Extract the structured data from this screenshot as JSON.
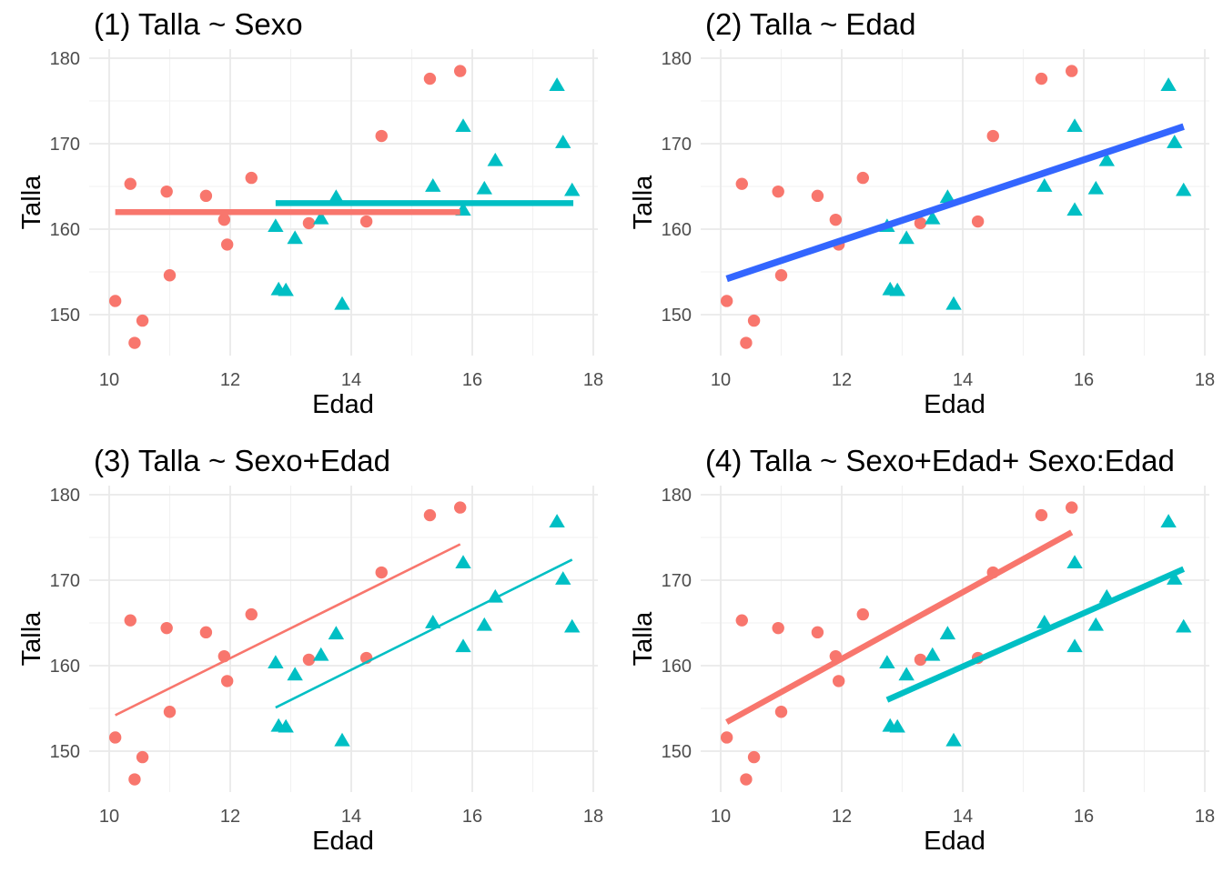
{
  "chart_data": {
    "type": "scatter",
    "shared": {
      "xlabel": "Edad",
      "ylabel": "Talla",
      "x_ticks": [
        10,
        12,
        14,
        16,
        18
      ],
      "x_minor": [
        11,
        13,
        15,
        17
      ],
      "y_ticks": [
        150,
        160,
        170,
        180
      ],
      "y_minor": [
        155,
        165,
        175
      ],
      "xlim": [
        9.67,
        18.07
      ],
      "ylim": [
        145.2,
        181.1
      ],
      "grid": "on",
      "legend": "none",
      "colors": {
        "red": "#F8766D",
        "teal": "#00BFC4",
        "blue": "#3366FF",
        "grid_major": "#E9E9E9",
        "grid_minor": "#F2F2F2",
        "tick_text": "#4d4d4d",
        "title_text": "#000000"
      },
      "groups": [
        {
          "name": "group-red-circles",
          "marker": "circle",
          "color": "#F8766D",
          "points": [
            [
              10.1,
              151.6
            ],
            [
              10.35,
              165.3
            ],
            [
              10.42,
              146.7
            ],
            [
              10.55,
              149.3
            ],
            [
              10.95,
              164.4
            ],
            [
              11.0,
              154.6
            ],
            [
              11.6,
              163.9
            ],
            [
              11.9,
              161.1
            ],
            [
              11.95,
              158.2
            ],
            [
              12.35,
              166.0
            ],
            [
              13.3,
              160.7
            ],
            [
              14.25,
              160.9
            ],
            [
              14.5,
              170.9
            ],
            [
              15.3,
              177.6
            ],
            [
              15.8,
              178.5
            ]
          ]
        },
        {
          "name": "group-teal-triangles",
          "marker": "triangle",
          "color": "#00BFC4",
          "points": [
            [
              12.75,
              160.4
            ],
            [
              12.8,
              153.0
            ],
            [
              12.92,
              152.9
            ],
            [
              13.07,
              159.0
            ],
            [
              13.5,
              161.3
            ],
            [
              13.75,
              163.8
            ],
            [
              13.85,
              151.3
            ],
            [
              15.35,
              165.1
            ],
            [
              15.85,
              172.1
            ],
            [
              15.85,
              162.3
            ],
            [
              16.2,
              164.8
            ],
            [
              16.38,
              168.1
            ],
            [
              17.4,
              176.9
            ],
            [
              17.5,
              170.2
            ],
            [
              17.65,
              164.6
            ]
          ]
        }
      ]
    },
    "panels": [
      {
        "n": 1,
        "title": "(1) Talla ~ Sexo",
        "model": "Talla ~ Sexo",
        "fit_lines": [
          {
            "color": "#F8766D",
            "x1": 10.1,
            "y1": 162.0,
            "x2": 15.8,
            "y2": 162.0,
            "width": 6.5
          },
          {
            "color": "#00BFC4",
            "x1": 12.75,
            "y1": 163.05,
            "x2": 17.67,
            "y2": 163.05,
            "width": 6.5
          }
        ]
      },
      {
        "n": 2,
        "title": "(2) Talla ~ Edad",
        "model": "Talla ~ Edad",
        "fit_lines": [
          {
            "color": "#3366FF",
            "x1": 10.1,
            "y1": 154.2,
            "x2": 17.65,
            "y2": 172.0,
            "width": 7.5
          }
        ]
      },
      {
        "n": 3,
        "title": "(3) Talla ~ Sexo+Edad",
        "model": "Talla ~ Sexo+Edad",
        "fit_lines": [
          {
            "color": "#F8766D",
            "x1": 10.1,
            "y1": 154.2,
            "x2": 15.8,
            "y2": 174.2,
            "width": 2.6
          },
          {
            "color": "#00BFC4",
            "x1": 12.75,
            "y1": 155.1,
            "x2": 17.65,
            "y2": 172.4,
            "width": 2.6
          }
        ]
      },
      {
        "n": 4,
        "title": "(4) Talla ~ Sexo+Edad+ Sexo:Edad",
        "model": "Talla ~ Sexo+Edad+ Sexo:Edad",
        "fit_lines": [
          {
            "color": "#F8766D",
            "x1": 10.1,
            "y1": 153.4,
            "x2": 15.8,
            "y2": 175.6,
            "width": 6.5
          },
          {
            "color": "#00BFC4",
            "x1": 12.75,
            "y1": 156.0,
            "x2": 17.65,
            "y2": 171.3,
            "width": 6.5
          }
        ]
      }
    ]
  }
}
